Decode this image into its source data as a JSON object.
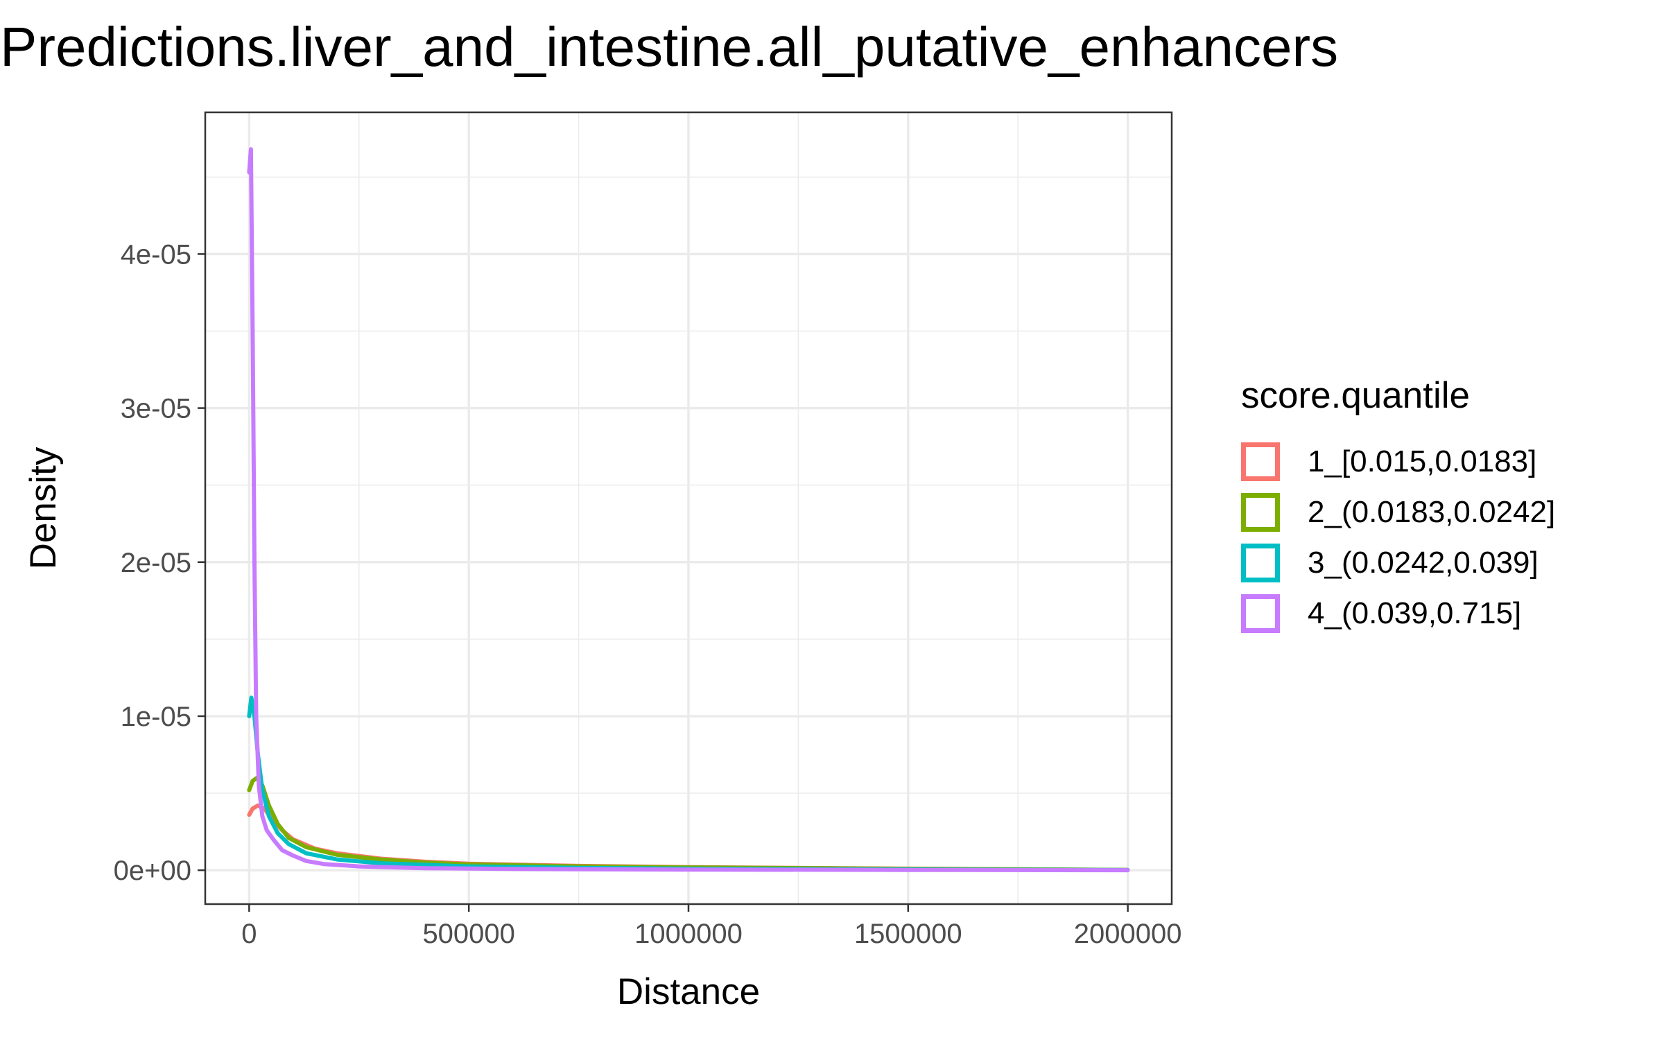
{
  "chart_data": {
    "type": "line",
    "title": "Predictions.liver_and_intestine.all_putative_enhancers",
    "xlabel": "Distance",
    "ylabel": "Density",
    "xlim": [
      -100000,
      2100000
    ],
    "ylim": [
      -2.2e-06,
      4.92e-05
    ],
    "x_ticks": [
      0,
      500000,
      1000000,
      1500000,
      2000000
    ],
    "x_tick_labels": [
      "0",
      "500000",
      "1000000",
      "1500000",
      "2000000"
    ],
    "y_ticks": [
      0,
      1e-05,
      2e-05,
      3e-05,
      4e-05
    ],
    "y_tick_labels": [
      "0e+00",
      "1e-05",
      "2e-05",
      "3e-05",
      "4e-05"
    ],
    "grid": true,
    "legend": {
      "title": "score.quantile",
      "position": "right"
    },
    "series": [
      {
        "name": "1_[0.015,0.0183]",
        "color": "#F8766D",
        "points": [
          [
            0,
            3.6e-06
          ],
          [
            8000,
            4e-06
          ],
          [
            20000,
            4.2e-06
          ],
          [
            35000,
            4e-06
          ],
          [
            50000,
            3.4e-06
          ],
          [
            75000,
            2.6e-06
          ],
          [
            100000,
            2e-06
          ],
          [
            150000,
            1.4e-06
          ],
          [
            200000,
            1.1e-06
          ],
          [
            300000,
            7.5e-07
          ],
          [
            400000,
            5.5e-07
          ],
          [
            500000,
            4.2e-07
          ],
          [
            750000,
            2.8e-07
          ],
          [
            1000000,
            2e-07
          ],
          [
            1500000,
            1e-07
          ],
          [
            2000000,
            2e-08
          ]
        ]
      },
      {
        "name": "2_(0.0183,0.0242]",
        "color": "#7CAE00",
        "points": [
          [
            0,
            5.2e-06
          ],
          [
            8000,
            5.8e-06
          ],
          [
            18000,
            6e-06
          ],
          [
            30000,
            5.5e-06
          ],
          [
            45000,
            4.2e-06
          ],
          [
            65000,
            3e-06
          ],
          [
            90000,
            2.1e-06
          ],
          [
            130000,
            1.5e-06
          ],
          [
            200000,
            1e-06
          ],
          [
            300000,
            7e-07
          ],
          [
            400000,
            5e-07
          ],
          [
            500000,
            3.8e-07
          ],
          [
            750000,
            2.5e-07
          ],
          [
            1000000,
            1.8e-07
          ],
          [
            1500000,
            9e-08
          ],
          [
            2000000,
            2e-08
          ]
        ]
      },
      {
        "name": "3_(0.0242,0.039]",
        "color": "#00BFC4",
        "points": [
          [
            0,
            1e-05
          ],
          [
            5000,
            1.12e-05
          ],
          [
            12000,
            1e-05
          ],
          [
            20000,
            7.5e-06
          ],
          [
            30000,
            5.2e-06
          ],
          [
            45000,
            3.5e-06
          ],
          [
            65000,
            2.4e-06
          ],
          [
            90000,
            1.7e-06
          ],
          [
            130000,
            1.1e-06
          ],
          [
            200000,
            7e-07
          ],
          [
            300000,
            4.5e-07
          ],
          [
            500000,
            2.5e-07
          ],
          [
            750000,
            1.5e-07
          ],
          [
            1000000,
            1e-07
          ],
          [
            1500000,
            5e-08
          ],
          [
            2000000,
            1e-08
          ]
        ]
      },
      {
        "name": "4_(0.039,0.715]",
        "color": "#C77CFF",
        "points": [
          [
            0,
            4.53e-05
          ],
          [
            4000,
            4.68e-05
          ],
          [
            8000,
            3.5e-05
          ],
          [
            12000,
            2e-05
          ],
          [
            16000,
            1e-05
          ],
          [
            22000,
            5.5e-06
          ],
          [
            30000,
            3.5e-06
          ],
          [
            40000,
            2.6e-06
          ],
          [
            55000,
            2e-06
          ],
          [
            75000,
            1.3e-06
          ],
          [
            100000,
            9.5e-07
          ],
          [
            130000,
            6e-07
          ],
          [
            170000,
            4e-07
          ],
          [
            250000,
            2.5e-07
          ],
          [
            400000,
            1.3e-07
          ],
          [
            600000,
            8e-08
          ],
          [
            1000000,
            4e-08
          ],
          [
            1500000,
            2e-08
          ],
          [
            2000000,
            0.0
          ]
        ]
      }
    ]
  }
}
